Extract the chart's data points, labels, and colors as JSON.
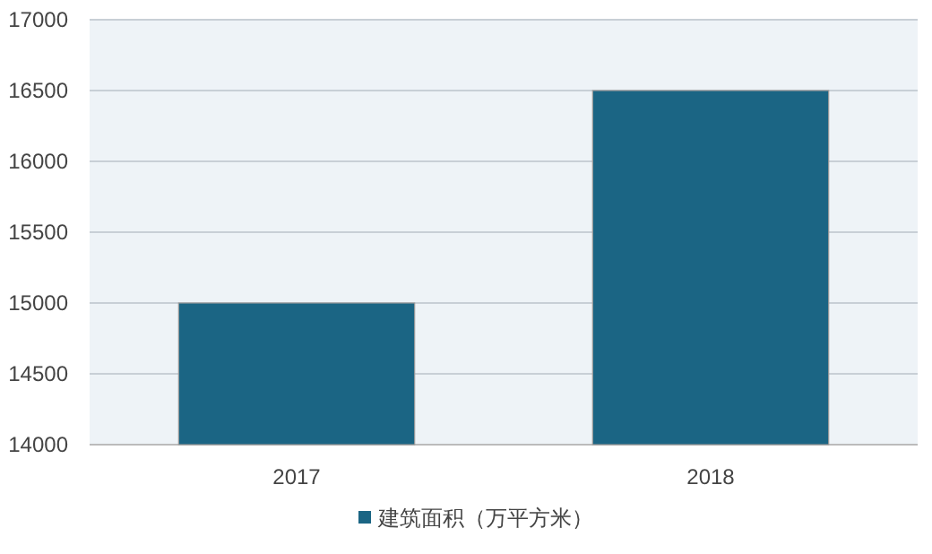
{
  "chart_data": {
    "type": "bar",
    "categories": [
      "2017",
      "2018"
    ],
    "series": [
      {
        "name": "建筑面积（万平方米）",
        "color": "#1b6584",
        "values": [
          15000,
          16500
        ]
      }
    ],
    "ylim": [
      14000,
      17000
    ],
    "yticks": [
      14000,
      14500,
      15000,
      15500,
      16000,
      16500,
      17000
    ],
    "grid": "y",
    "legend": "bottom"
  }
}
